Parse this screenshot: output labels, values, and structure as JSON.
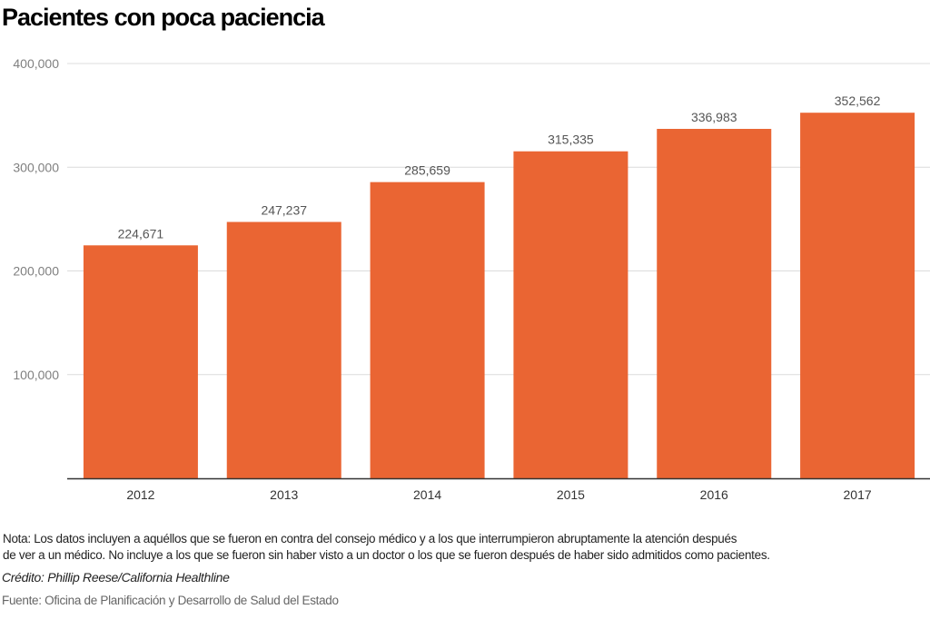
{
  "chart_data": {
    "type": "bar",
    "title": "Pacientes con poca paciencia",
    "categories": [
      "2012",
      "2013",
      "2014",
      "2015",
      "2016",
      "2017"
    ],
    "values": [
      224671,
      247237,
      285659,
      315335,
      336983,
      352562
    ],
    "data_labels": [
      "224,671",
      "247,237",
      "285,659",
      "315,335",
      "336,983",
      "352,562"
    ],
    "xlabel": "",
    "ylabel": "",
    "ylim": [
      0,
      400000
    ],
    "yticks": [
      100000,
      200000,
      300000,
      400000
    ],
    "ytick_labels": [
      "100,000",
      "200,000",
      "300,000",
      "400,000"
    ],
    "grid": true,
    "legend": "none",
    "bar_color": "#EA6533"
  },
  "footer": {
    "note_line1": "Nota: Los datos incluyen a aquéllos que se fueron en contra del consejo médico y a los que interrumpieron abruptamente la atención después",
    "note_line2": "de ver a un médico. No incluye a los que se fueron sin haber visto a un doctor o los que se fueron después de haber sido admitidos como pacientes.",
    "credit": "Crédito: Phillip Reese/California Healthline",
    "source": "Fuente: Oficina de Planificación y Desarrollo de Salud del Estado"
  }
}
